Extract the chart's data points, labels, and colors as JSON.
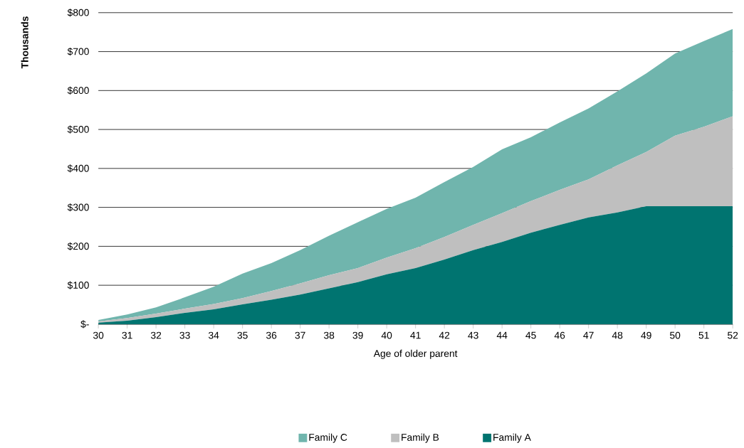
{
  "chart_data": {
    "type": "area",
    "stacked": true,
    "xlabel": "Age of older parent",
    "ylabel": "Thousands",
    "x": [
      30,
      31,
      32,
      33,
      34,
      35,
      36,
      37,
      38,
      39,
      40,
      41,
      42,
      43,
      44,
      45,
      46,
      47,
      48,
      49,
      50,
      51,
      52
    ],
    "series": [
      {
        "name": "Family A",
        "color": "#007470",
        "values": [
          4,
          9,
          18,
          29,
          38,
          51,
          63,
          76,
          92,
          108,
          128,
          144,
          166,
          190,
          211,
          235,
          255,
          274,
          287,
          303,
          303,
          303,
          303
        ]
      },
      {
        "name": "Family B",
        "color": "#bfbfbf",
        "values": [
          3,
          7,
          9,
          11,
          14,
          16,
          22,
          29,
          34,
          36,
          43,
          51,
          58,
          65,
          74,
          81,
          90,
          98,
          121,
          139,
          181,
          204,
          231
        ]
      },
      {
        "name": "Family C",
        "color": "#70b5ad",
        "values": [
          4,
          9,
          16,
          29,
          44,
          63,
          72,
          85,
          101,
          118,
          125,
          130,
          141,
          149,
          164,
          164,
          173,
          182,
          190,
          202,
          211,
          220,
          224
        ]
      }
    ],
    "xlim": [
      30,
      52
    ],
    "xticks": [
      30,
      31,
      32,
      33,
      34,
      35,
      36,
      37,
      38,
      39,
      40,
      41,
      42,
      43,
      44,
      45,
      46,
      47,
      48,
      49,
      50,
      51,
      52
    ],
    "ylim": [
      0,
      800
    ],
    "yticks": [
      {
        "value": 0,
        "label": "$-"
      },
      {
        "value": 100,
        "label": "$100"
      },
      {
        "value": 200,
        "label": "$200"
      },
      {
        "value": 300,
        "label": "$300"
      },
      {
        "value": 400,
        "label": "$400"
      },
      {
        "value": 500,
        "label": "$500"
      },
      {
        "value": 600,
        "label": "$600"
      },
      {
        "value": 700,
        "label": "$700"
      },
      {
        "value": 800,
        "label": "$800"
      }
    ],
    "grid": "y",
    "legend": "bottom"
  }
}
